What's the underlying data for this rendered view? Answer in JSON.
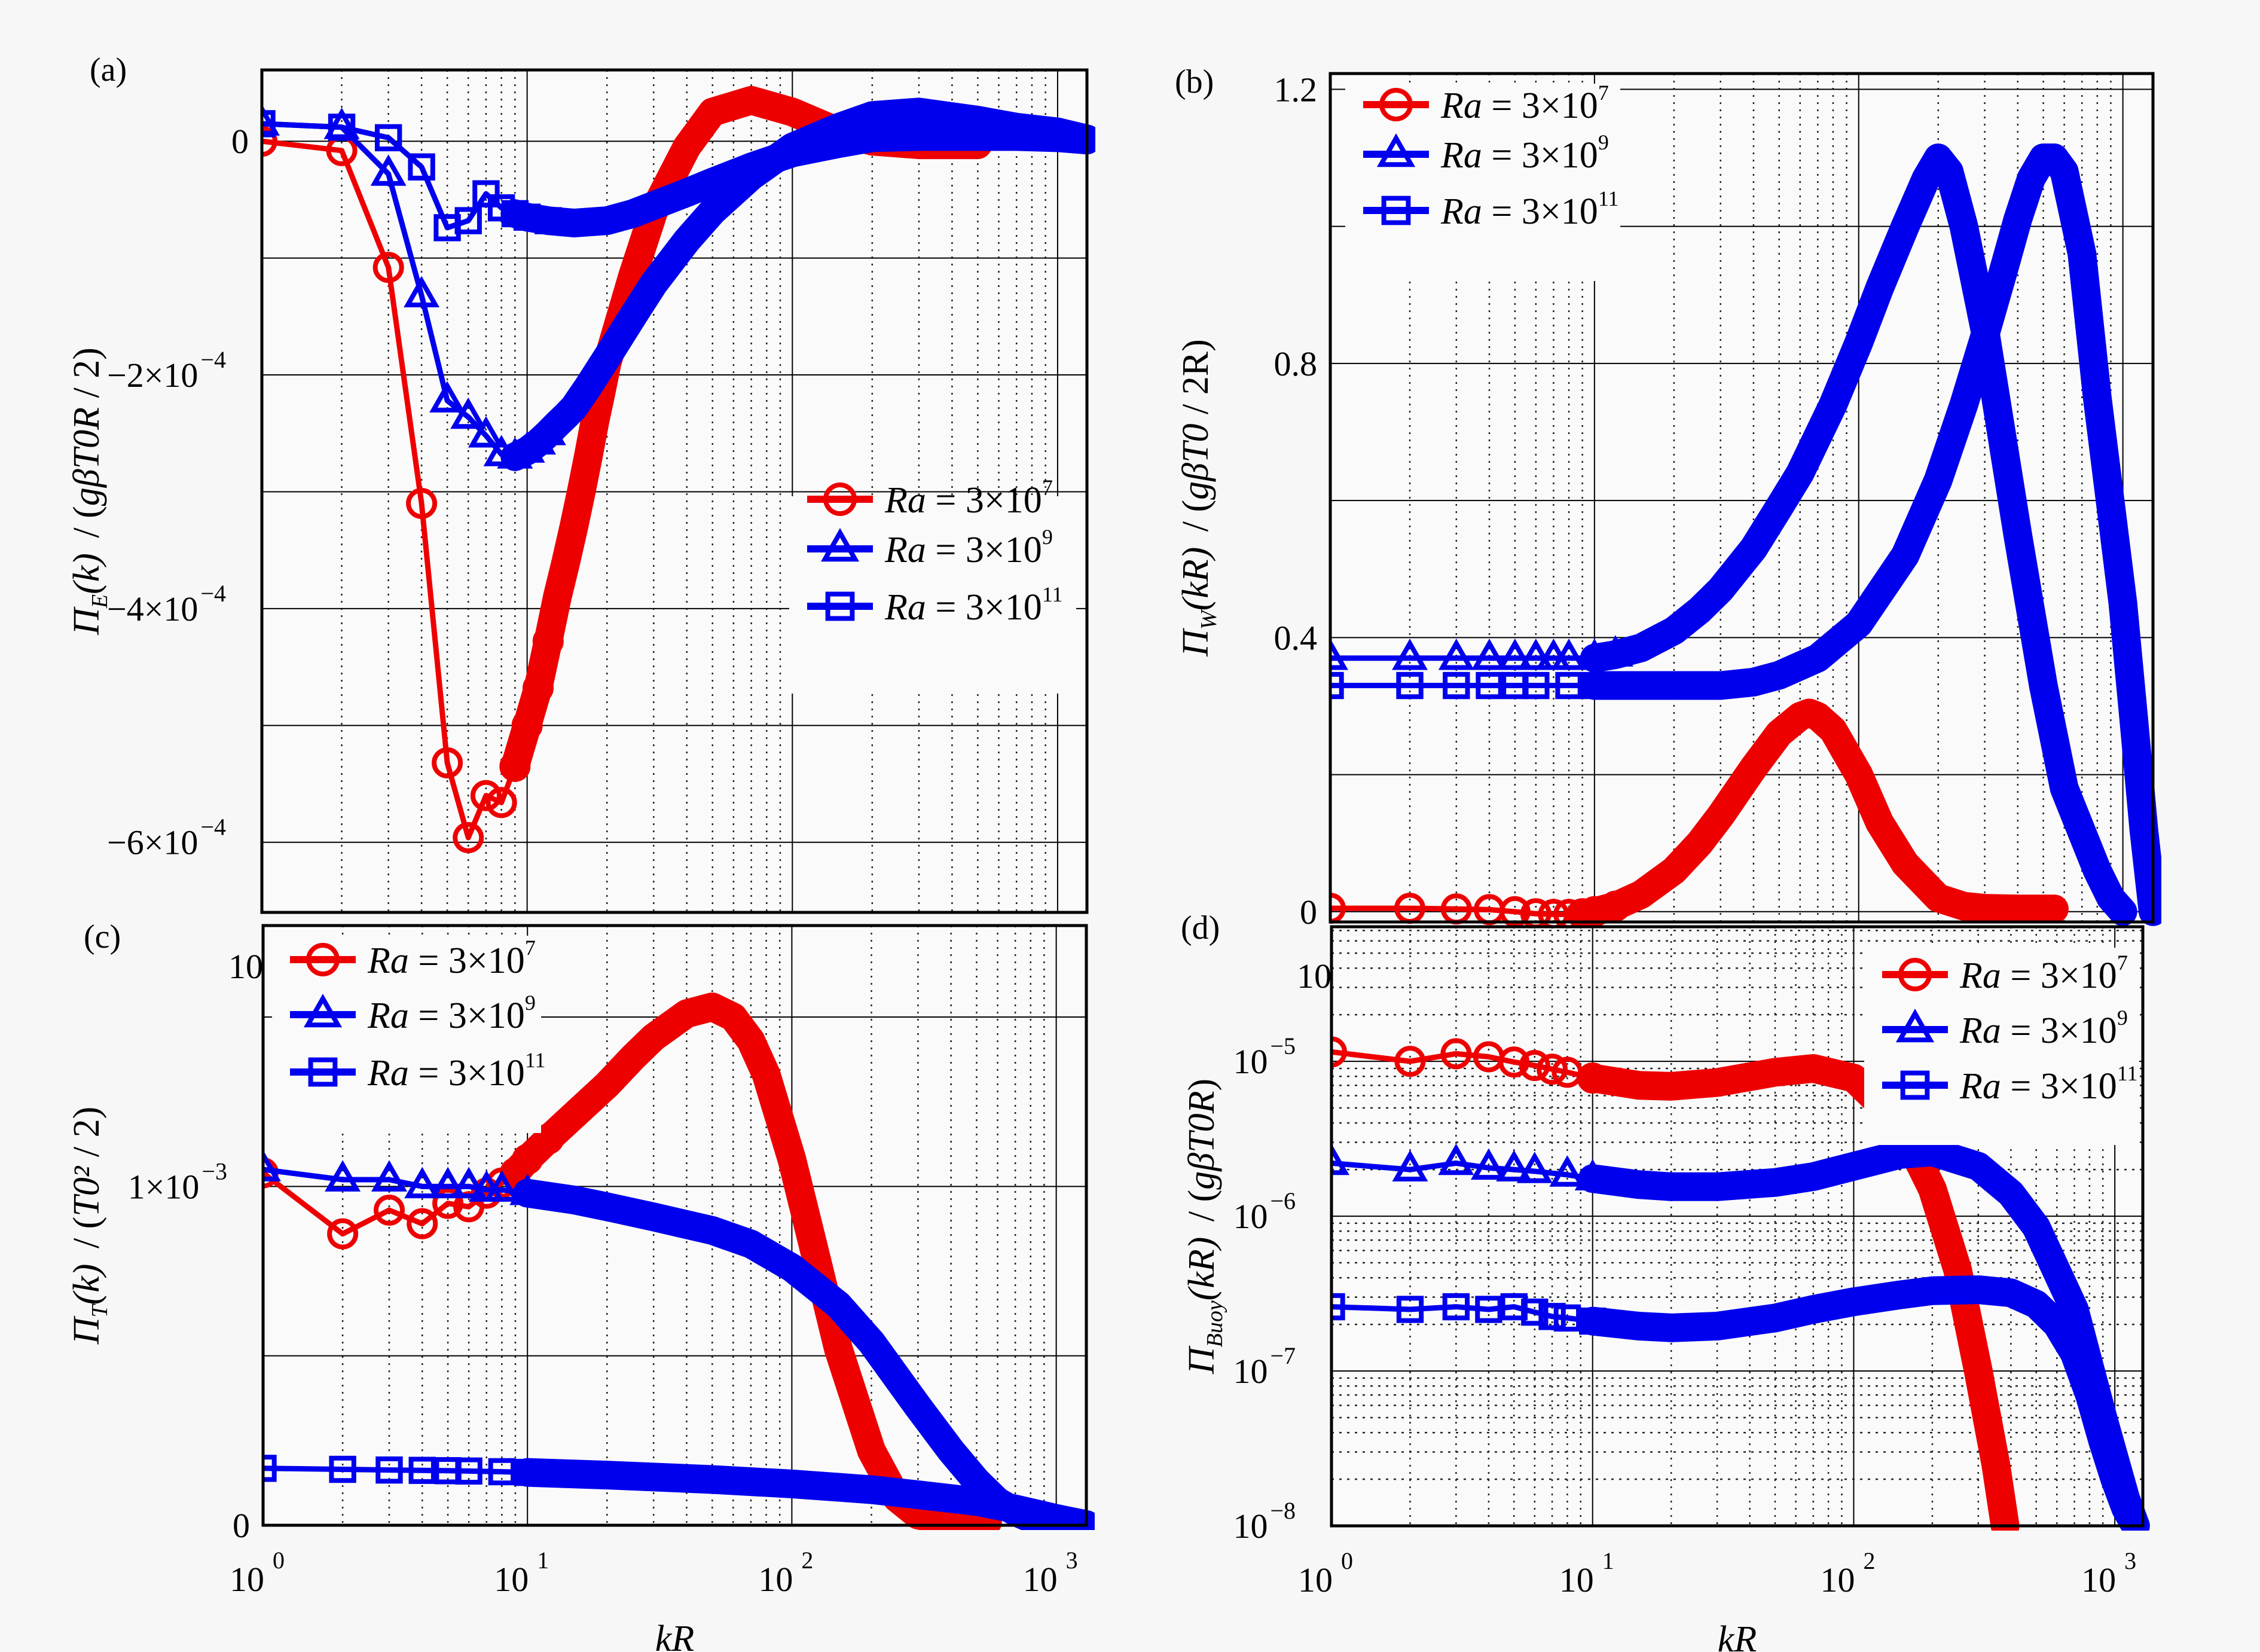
{
  "chart_data": [
    {
      "panel": "(a)",
      "type": "line",
      "title": "",
      "xlabel": "kR",
      "ylabel": "Π_E(k) / (gβT0R / 2)",
      "ylabel_parts": {
        "main": "Π",
        "sub": "E",
        "arg": "(k)",
        "slash": "/",
        "num": "gβT0R",
        "den": "2"
      },
      "xscale": "log",
      "xlim": [
        1,
        1290
      ],
      "ylim": [
        -0.00066,
        6.1e-05
      ],
      "xticks": [
        {
          "v": 1,
          "base": "10",
          "exp": "0"
        },
        {
          "v": 10,
          "base": "10",
          "exp": "1"
        },
        {
          "v": 100,
          "base": "10",
          "exp": "2"
        },
        {
          "v": 1000,
          "base": "10",
          "exp": "3"
        }
      ],
      "yticks": [
        {
          "v": 0,
          "text": "0",
          "exp": ""
        },
        {
          "v": -0.0002,
          "text": "−2×10",
          "exp": "−4"
        },
        {
          "v": -0.0004,
          "text": "−4×10",
          "exp": "−4"
        },
        {
          "v": -0.0006,
          "text": "−6×10",
          "exp": "−4"
        }
      ],
      "ygrid": [
        0,
        -0.0001,
        -0.0002,
        -0.0003,
        -0.0004,
        -0.0005,
        -0.0006
      ],
      "grid": true,
      "legend_position": "lower-right",
      "series": [
        {
          "name": "Ra=3×10^7",
          "label_base": "3×10",
          "label_exp": "7",
          "color": "#ee0000",
          "marker": "circle",
          "x": [
            1,
            2,
            3,
            4,
            5,
            6,
            7,
            8,
            9,
            10,
            11,
            12,
            13,
            14,
            15,
            16,
            17,
            18,
            19,
            20,
            25,
            30,
            40,
            50,
            70,
            100,
            150,
            200,
            300,
            500
          ],
          "y": [
            0,
            -8e-06,
            -0.000108,
            -0.00031,
            -0.000532,
            -0.000596,
            -0.00056,
            -0.000566,
            -0.000535,
            -0.0005,
            -0.000468,
            -0.000428,
            -0.00039,
            -0.00036,
            -0.00033,
            -0.0003,
            -0.00027,
            -0.00024,
            -0.000215,
            -0.00019,
            -0.000115,
            -6e-05,
            -5e-06,
            2.5e-05,
            3.5e-05,
            2.5e-05,
            8e-06,
            0.0,
            -3e-06,
            -3e-06
          ]
        },
        {
          "name": "Ra=3×10^9",
          "label_base": "3×10",
          "label_exp": "9",
          "color": "#0000ee",
          "marker": "triangle",
          "x": [
            1,
            2,
            3,
            4,
            5,
            6,
            7,
            8,
            9,
            10,
            11,
            12,
            13,
            14,
            15,
            17,
            20,
            25,
            30,
            40,
            50,
            70,
            100,
            150,
            200,
            300,
            500,
            700,
            1000,
            1290
          ],
          "y": [
            1.5e-05,
            1.2e-05,
            -2.8e-05,
            -0.000132,
            -0.000222,
            -0.000236,
            -0.000252,
            -0.000268,
            -0.00027,
            -0.000265,
            -0.000258,
            -0.00025,
            -0.000242,
            -0.000235,
            -0.000228,
            -0.00021,
            -0.000185,
            -0.00015,
            -0.000122,
            -8.5e-05,
            -6e-05,
            -3e-05,
            -5e-06,
            1.2e-05,
            2.2e-05,
            2.5e-05,
            1.8e-05,
            1.2e-05,
            8e-06,
            2e-06
          ]
        },
        {
          "name": "Ra=3×10^11",
          "label_base": "3×10",
          "label_exp": "11",
          "color": "#0000ee",
          "marker": "square",
          "x": [
            1,
            2,
            3,
            4,
            5,
            6,
            7,
            8,
            9,
            10,
            12,
            15,
            20,
            25,
            30,
            40,
            50,
            70,
            100,
            150,
            200,
            300,
            500,
            700,
            1000,
            1290
          ],
          "y": [
            1.5e-05,
            1.2e-05,
            3e-06,
            -2.2e-05,
            -7.4e-05,
            -6.8e-05,
            -4.5e-05,
            -5.7e-05,
            -6.2e-05,
            -6.5e-05,
            -6.8e-05,
            -7e-05,
            -6.8e-05,
            -6.2e-05,
            -5.5e-05,
            -4.4e-05,
            -3.5e-05,
            -2.2e-05,
            -1e-05,
            -2e-06,
            3e-06,
            4e-06,
            4e-06,
            4e-06,
            3e-06,
            1e-06
          ]
        }
      ]
    },
    {
      "panel": "(b)",
      "type": "line",
      "title": "",
      "xlabel": "kR",
      "ylabel": "Π_W(kR) / (gβT0 / 2R)",
      "ylabel_parts": {
        "main": "Π",
        "sub": "W",
        "arg": "(kR)",
        "slash": "/",
        "num": "gβT0",
        "den": "2R"
      },
      "xscale": "log",
      "xlim": [
        1,
        1300
      ],
      "ylim": [
        -0.015,
        1.223
      ],
      "xticks": [
        {
          "v": 1,
          "base": "10",
          "exp": "0"
        },
        {
          "v": 10,
          "base": "10",
          "exp": "1"
        },
        {
          "v": 100,
          "base": "10",
          "exp": "2"
        },
        {
          "v": 1000,
          "base": "10",
          "exp": "3"
        }
      ],
      "yticks": [
        {
          "v": 0,
          "text": "0",
          "exp": ""
        },
        {
          "v": 0.4,
          "text": "0.4",
          "exp": ""
        },
        {
          "v": 0.8,
          "text": "0.8",
          "exp": ""
        },
        {
          "v": 1.2,
          "text": "1.2",
          "exp": ""
        }
      ],
      "ygrid": [
        0,
        0.2,
        0.4,
        0.6,
        0.8,
        1.0,
        1.2
      ],
      "grid": true,
      "legend_position": "top-left",
      "series": [
        {
          "name": "Ra=3×10^7",
          "label_base": "3×10",
          "label_exp": "7",
          "color": "#ee0000",
          "marker": "circle",
          "x": [
            1,
            2,
            3,
            4,
            5,
            6,
            7,
            8,
            9,
            10,
            12,
            15,
            20,
            25,
            30,
            40,
            50,
            60,
            65,
            70,
            80,
            100,
            120,
            150,
            200,
            250,
            300,
            400,
            550
          ],
          "y": [
            0.005,
            0.005,
            0.004,
            0.003,
            0.0,
            -0.003,
            -0.004,
            -0.004,
            -0.003,
            0.0,
            0.008,
            0.025,
            0.06,
            0.1,
            0.14,
            0.21,
            0.26,
            0.285,
            0.29,
            0.285,
            0.265,
            0.2,
            0.13,
            0.07,
            0.02,
            0.008,
            0.005,
            0.004,
            0.004
          ]
        },
        {
          "name": "Ra=3×10^9",
          "label_base": "3×10",
          "label_exp": "9",
          "color": "#0000ee",
          "marker": "triangle",
          "x": [
            1,
            2,
            3,
            4,
            5,
            6,
            7,
            8,
            10,
            12,
            15,
            20,
            25,
            30,
            40,
            50,
            60,
            80,
            100,
            120,
            150,
            180,
            200,
            220,
            250,
            300,
            400,
            500,
            600,
            800,
            900,
            1000
          ],
          "y": [
            0.37,
            0.37,
            0.37,
            0.37,
            0.37,
            0.37,
            0.37,
            0.37,
            0.37,
            0.375,
            0.385,
            0.41,
            0.44,
            0.47,
            0.53,
            0.59,
            0.64,
            0.74,
            0.83,
            0.91,
            1.0,
            1.07,
            1.1,
            1.08,
            1.0,
            0.85,
            0.55,
            0.33,
            0.18,
            0.06,
            0.02,
            0.0
          ]
        },
        {
          "name": "Ra=3×10^11",
          "label_base": "3×10",
          "label_exp": "11",
          "color": "#0000ee",
          "marker": "square",
          "x": [
            1,
            2,
            3,
            4,
            5,
            6,
            8,
            10,
            15,
            20,
            30,
            40,
            50,
            70,
            100,
            150,
            200,
            250,
            300,
            350,
            400,
            450,
            500,
            550,
            600,
            700,
            800,
            1000,
            1100,
            1200,
            1300
          ],
          "y": [
            0.33,
            0.33,
            0.33,
            0.33,
            0.33,
            0.33,
            0.33,
            0.33,
            0.33,
            0.33,
            0.33,
            0.335,
            0.345,
            0.37,
            0.42,
            0.52,
            0.63,
            0.74,
            0.84,
            0.93,
            1.01,
            1.07,
            1.1,
            1.1,
            1.08,
            0.96,
            0.75,
            0.45,
            0.28,
            0.12,
            0.0
          ]
        }
      ]
    },
    {
      "panel": "(c)",
      "type": "line",
      "title": "",
      "xlabel": "kR",
      "ylabel": "Π_T(k) / (T0² / 2)",
      "ylabel_parts": {
        "main": "Π",
        "sub": "T",
        "arg": "(k)",
        "slash": "/",
        "num": "T0²",
        "den": "2"
      },
      "xscale": "log",
      "xlim": [
        1,
        1300
      ],
      "ylim": [
        0,
        0.00177
      ],
      "xticks": [
        {
          "v": 1,
          "base": "10",
          "exp": "0"
        },
        {
          "v": 10,
          "base": "10",
          "exp": "1"
        },
        {
          "v": 100,
          "base": "10",
          "exp": "2"
        },
        {
          "v": 1000,
          "base": "10",
          "exp": "3"
        }
      ],
      "yticks": [
        {
          "v": 0,
          "text": "0",
          "exp": ""
        },
        {
          "v": 0.001,
          "text": "1×10",
          "exp": "−3"
        }
      ],
      "ygrid": [
        0,
        0.0005,
        0.001,
        0.0015
      ],
      "grid": true,
      "legend_position": "top-left",
      "series": [
        {
          "name": "Ra=3×10^7",
          "label_base": "3×10",
          "label_exp": "7",
          "color": "#ee0000",
          "marker": "circle",
          "x": [
            1,
            2,
            3,
            4,
            5,
            6,
            7,
            8,
            9,
            10,
            12,
            15,
            20,
            25,
            30,
            40,
            50,
            60,
            70,
            80,
            100,
            120,
            150,
            200,
            250,
            300,
            400,
            550
          ],
          "y": [
            0.00104,
            0.00086,
            0.00093,
            0.00089,
            0.00095,
            0.00094,
            0.00098,
            0.00101,
            0.00104,
            0.00108,
            0.00114,
            0.00121,
            0.0013,
            0.00138,
            0.00144,
            0.00151,
            0.00153,
            0.0015,
            0.00143,
            0.00133,
            0.00108,
            0.00083,
            0.00052,
            0.00022,
            8e-05,
            3e-05,
            1e-05,
            1e-05
          ]
        },
        {
          "name": "Ra=3×10^9",
          "label_base": "3×10",
          "label_exp": "9",
          "color": "#0000ee",
          "marker": "triangle",
          "x": [
            1,
            2,
            3,
            4,
            5,
            6,
            7,
            8,
            10,
            15,
            20,
            30,
            50,
            70,
            100,
            150,
            200,
            300,
            400,
            500,
            600,
            700,
            800,
            1000,
            1300
          ],
          "y": [
            0.00105,
            0.00102,
            0.00102,
            0.001,
            0.001,
            0.001,
            0.00099,
            0.00099,
            0.00098,
            0.00096,
            0.00094,
            0.00091,
            0.00087,
            0.00083,
            0.00076,
            0.00065,
            0.00054,
            0.00035,
            0.00022,
            0.00013,
            7e-05,
            4e-05,
            2e-05,
            1e-05,
            0.0
          ]
        },
        {
          "name": "Ra=3×10^11",
          "label_base": "3×10",
          "label_exp": "11",
          "color": "#0000ee",
          "marker": "square",
          "x": [
            1,
            2,
            3,
            4,
            5,
            6,
            8,
            10,
            20,
            50,
            100,
            200,
            300,
            500,
            700,
            1000,
            1300
          ],
          "y": [
            0.000168,
            0.000165,
            0.000163,
            0.000162,
            0.000161,
            0.00016,
            0.000158,
            0.000156,
            0.000148,
            0.000135,
            0.000122,
            0.000105,
            9e-05,
            7e-05,
            4.8e-05,
            2e-05,
            2e-06
          ]
        }
      ]
    },
    {
      "panel": "(d)",
      "type": "line",
      "title": "",
      "xlabel": "kR",
      "ylabel": "Π_Buoy(kR) / (gβT0R)",
      "ylabel_parts": {
        "main": "Π",
        "sub": "Buoy",
        "arg": "(kR)",
        "slash": "/",
        "num": "gβT0R",
        "den": ""
      },
      "xscale": "log",
      "yscale": "log",
      "xlim": [
        1,
        1280
      ],
      "ylim": [
        1e-08,
        7.4e-05
      ],
      "xticks": [
        {
          "v": 1,
          "base": "10",
          "exp": "0"
        },
        {
          "v": 10,
          "base": "10",
          "exp": "1"
        },
        {
          "v": 100,
          "base": "10",
          "exp": "2"
        },
        {
          "v": 1000,
          "base": "10",
          "exp": "3"
        }
      ],
      "yticks": [
        {
          "v": 1e-08,
          "text": "10",
          "exp": "−8"
        },
        {
          "v": 1e-07,
          "text": "10",
          "exp": "−7"
        },
        {
          "v": 1e-06,
          "text": "10",
          "exp": "−6"
        },
        {
          "v": 1e-05,
          "text": "10",
          "exp": "−5"
        }
      ],
      "grid": true,
      "minor_grid": true,
      "legend_position": "top-right",
      "series": [
        {
          "name": "Ra=3×10^7",
          "label_base": "3×10",
          "label_exp": "7",
          "color": "#ee0000",
          "marker": "circle",
          "x": [
            1,
            2,
            3,
            4,
            5,
            6,
            7,
            8,
            10,
            15,
            20,
            30,
            50,
            70,
            100,
            150,
            200,
            250,
            300,
            350,
            380
          ],
          "y": [
            1.15e-05,
            1e-05,
            1.12e-05,
            1.07e-05,
            9.9e-06,
            9.4e-06,
            8.9e-06,
            8.5e-06,
            7.8e-06,
            7e-06,
            6.9e-06,
            7.3e-06,
            8.5e-06,
            9e-06,
            7.8e-06,
            4e-06,
            1.5e-06,
            4.5e-07,
            1e-07,
            2.5e-08,
            1e-08
          ]
        },
        {
          "name": "Ra=3×10^9",
          "label_base": "3×10",
          "label_exp": "9",
          "color": "#0000ee",
          "marker": "triangle",
          "x": [
            1,
            2,
            3,
            4,
            5,
            6,
            8,
            10,
            15,
            20,
            30,
            50,
            70,
            100,
            150,
            200,
            300,
            400,
            500,
            700,
            900,
            1100,
            1200
          ],
          "y": [
            2.2e-06,
            2e-06,
            2.2e-06,
            2.05e-06,
            2e-06,
            1.95e-06,
            1.85e-06,
            1.75e-06,
            1.6e-06,
            1.55e-06,
            1.55e-06,
            1.65e-06,
            1.8e-06,
            2.1e-06,
            2.5e-06,
            2.6e-06,
            2.1e-06,
            1.4e-06,
            8.5e-07,
            2.5e-07,
            5e-08,
            1.5e-08,
            1e-08
          ]
        },
        {
          "name": "Ra=3×10^11",
          "label_base": "3×10",
          "label_exp": "11",
          "color": "#0000ee",
          "marker": "square",
          "x": [
            1,
            2,
            3,
            4,
            5,
            6,
            7,
            8,
            10,
            15,
            20,
            30,
            50,
            70,
            100,
            150,
            200,
            300,
            400,
            500,
            600,
            700,
            800,
            900,
            1000,
            1100,
            1200
          ],
          "y": [
            2.6e-07,
            2.5e-07,
            2.6e-07,
            2.5e-07,
            2.6e-07,
            2.4e-07,
            2.25e-07,
            2.2e-07,
            2.1e-07,
            1.95e-07,
            1.9e-07,
            1.95e-07,
            2.2e-07,
            2.5e-07,
            2.8e-07,
            3.1e-07,
            3.3e-07,
            3.35e-07,
            3.2e-07,
            2.7e-07,
            2e-07,
            1.3e-07,
            7e-08,
            3.5e-08,
            2e-08,
            1.3e-08,
            1e-08
          ]
        }
      ]
    }
  ]
}
